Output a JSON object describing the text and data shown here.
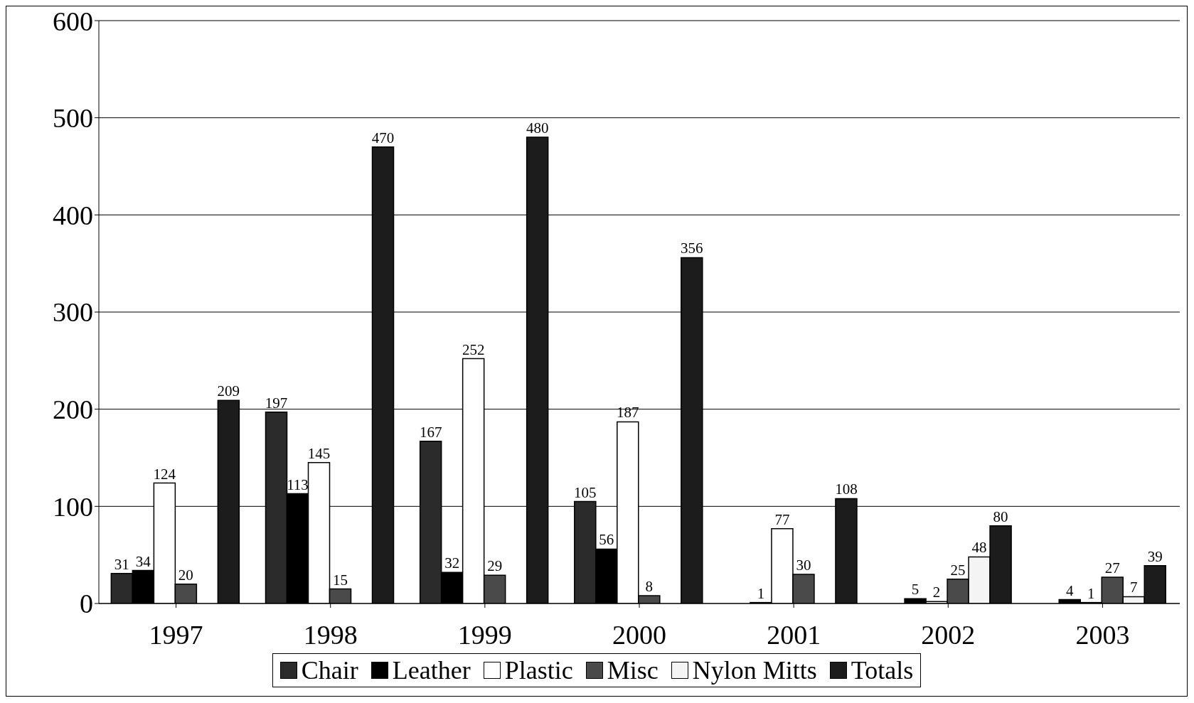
{
  "chart_data": {
    "type": "bar",
    "categories": [
      "1997",
      "1998",
      "1999",
      "2000",
      "2001",
      "2002",
      "2003"
    ],
    "series": [
      {
        "name": "Chair",
        "color": "#2b2b2b",
        "values": [
          31,
          197,
          167,
          105,
          null,
          null,
          null
        ]
      },
      {
        "name": "Leather",
        "color": "#000000",
        "values": [
          34,
          113,
          32,
          56,
          1,
          5,
          4
        ]
      },
      {
        "name": "Plastic",
        "color": "#ffffff",
        "values": [
          124,
          145,
          252,
          187,
          77,
          2,
          1
        ]
      },
      {
        "name": "Misc",
        "color": "#4a4a4a",
        "values": [
          20,
          15,
          29,
          8,
          30,
          25,
          27
        ]
      },
      {
        "name": "Nylon Mitts",
        "color": "#f4f4f4",
        "values": [
          null,
          null,
          null,
          null,
          null,
          48,
          7
        ]
      },
      {
        "name": "Totals",
        "color": "#1c1c1c",
        "values": [
          209,
          470,
          480,
          356,
          108,
          80,
          39
        ]
      }
    ],
    "ylim": [
      0,
      600
    ],
    "yticks": [
      0,
      100,
      200,
      300,
      400,
      500,
      600
    ],
    "grid": "y",
    "legend": "bottom",
    "data_labels": true
  }
}
